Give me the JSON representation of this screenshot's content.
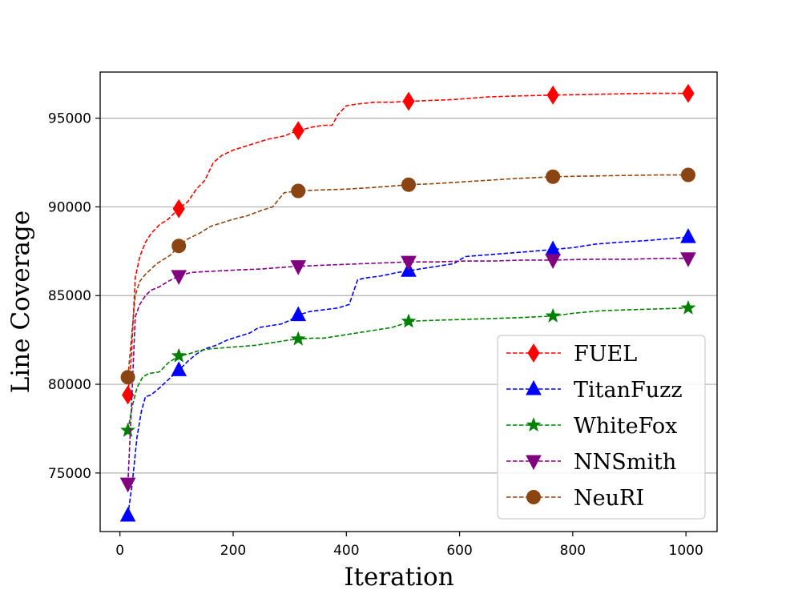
{
  "chart_data": {
    "type": "line",
    "title": "",
    "xlabel": "Iteration",
    "ylabel": "Line Coverage",
    "xlim": [
      -35,
      1055
    ],
    "ylim": [
      71700,
      97600
    ],
    "xticks": [
      0,
      200,
      400,
      600,
      800,
      1000
    ],
    "yticks": [
      75000,
      80000,
      85000,
      90000,
      95000
    ],
    "grid": "horizontal",
    "legend_position": "lower-right",
    "series": [
      {
        "name": "FUEL",
        "color": "#ff0000",
        "marker": "diamond",
        "x": [
          14,
          20,
          27,
          35,
          45,
          55,
          70,
          85,
          104,
          120,
          135,
          150,
          165,
          180,
          200,
          230,
          260,
          290,
          315,
          340,
          360,
          375,
          385,
          400,
          420,
          450,
          480,
          510,
          550,
          590,
          650,
          700,
          765,
          850,
          930,
          1004
        ],
        "y": [
          79400,
          81500,
          86000,
          87200,
          88000,
          88500,
          89000,
          89300,
          89900,
          90300,
          91000,
          91500,
          92500,
          92900,
          93200,
          93500,
          93800,
          94000,
          94300,
          94500,
          94600,
          94600,
          95200,
          95700,
          95800,
          95900,
          95900,
          95950,
          96000,
          96050,
          96200,
          96250,
          96300,
          96350,
          96400,
          96400
        ],
        "marker_x": [
          14,
          104,
          315,
          510,
          765,
          1004
        ],
        "marker_y": [
          79400,
          89900,
          94300,
          95950,
          96300,
          96400
        ]
      },
      {
        "name": "TitanFuzz",
        "color": "#0000ff",
        "marker": "triangle-up",
        "x": [
          14,
          22,
          30,
          38,
          45,
          55,
          70,
          90,
          104,
          120,
          135,
          150,
          170,
          190,
          210,
          230,
          245,
          265,
          285,
          300,
          315,
          335,
          360,
          385,
          405,
          420,
          435,
          460,
          490,
          510,
          550,
          590,
          610,
          650,
          690,
          730,
          765,
          800,
          840,
          880,
          930,
          1004
        ],
        "y": [
          72600,
          74500,
          77000,
          78500,
          79300,
          79400,
          79800,
          80400,
          80800,
          81300,
          81700,
          82000,
          82200,
          82500,
          82700,
          82900,
          83200,
          83300,
          83400,
          83600,
          83900,
          84100,
          84200,
          84300,
          84500,
          85900,
          86000,
          86100,
          86300,
          86400,
          86600,
          86800,
          87200,
          87300,
          87400,
          87500,
          87600,
          87700,
          87900,
          88000,
          88100,
          88300
        ],
        "marker_x": [
          14,
          104,
          315,
          510,
          765,
          1004
        ],
        "marker_y": [
          72600,
          80800,
          83900,
          86400,
          87600,
          88300
        ]
      },
      {
        "name": "WhiteFox",
        "color": "#008000",
        "marker": "star",
        "x": [
          14,
          22,
          30,
          40,
          50,
          60,
          70,
          85,
          104,
          120,
          140,
          160,
          180,
          200,
          220,
          240,
          260,
          280,
          300,
          315,
          340,
          360,
          380,
          400,
          420,
          440,
          460,
          480,
          500,
          510,
          550,
          600,
          650,
          700,
          765,
          800,
          850,
          900,
          950,
          1004
        ],
        "y": [
          77400,
          78800,
          79800,
          80400,
          80600,
          80650,
          80700,
          81200,
          81600,
          81700,
          81900,
          82000,
          82050,
          82100,
          82150,
          82200,
          82300,
          82400,
          82500,
          82550,
          82600,
          82600,
          82700,
          82800,
          82900,
          83000,
          83100,
          83200,
          83400,
          83550,
          83600,
          83650,
          83700,
          83750,
          83850,
          84000,
          84150,
          84200,
          84250,
          84300
        ],
        "marker_x": [
          14,
          104,
          315,
          510,
          765,
          1004
        ],
        "marker_y": [
          77400,
          81600,
          82550,
          83550,
          83850,
          84300
        ]
      },
      {
        "name": "NNSmith",
        "color": "#800080",
        "marker": "triangle-down",
        "x": [
          14,
          20,
          27,
          35,
          45,
          55,
          70,
          85,
          104,
          125,
          150,
          180,
          210,
          250,
          290,
          315,
          350,
          390,
          430,
          470,
          510,
          560,
          610,
          660,
          710,
          765,
          830,
          900,
          960,
          1004
        ],
        "y": [
          74400,
          78500,
          83800,
          84500,
          85000,
          85300,
          85500,
          85800,
          86100,
          86300,
          86350,
          86400,
          86450,
          86500,
          86600,
          86650,
          86700,
          86750,
          86800,
          86850,
          86900,
          86900,
          86950,
          86950,
          87000,
          87000,
          87050,
          87050,
          87100,
          87100
        ],
        "marker_x": [
          14,
          104,
          315,
          510,
          765,
          1004
        ],
        "marker_y": [
          74400,
          86100,
          86650,
          86900,
          87000,
          87100
        ]
      },
      {
        "name": "NeuRI",
        "color": "#8b4513",
        "marker": "circle",
        "x": [
          14,
          20,
          27,
          35,
          45,
          55,
          65,
          75,
          90,
          104,
          120,
          140,
          160,
          180,
          200,
          225,
          250,
          270,
          290,
          315,
          350,
          400,
          450,
          510,
          550,
          600,
          650,
          700,
          765,
          850,
          950,
          1004
        ],
        "y": [
          80400,
          82500,
          85000,
          85800,
          86200,
          86500,
          86800,
          87000,
          87300,
          87800,
          88200,
          88500,
          88900,
          89100,
          89300,
          89500,
          89800,
          90000,
          90800,
          90900,
          90950,
          91000,
          91100,
          91250,
          91300,
          91400,
          91500,
          91600,
          91700,
          91750,
          91800,
          91800
        ],
        "marker_x": [
          14,
          104,
          315,
          510,
          765,
          1004
        ],
        "marker_y": [
          80400,
          87800,
          90900,
          91250,
          91700,
          91800
        ]
      }
    ]
  }
}
